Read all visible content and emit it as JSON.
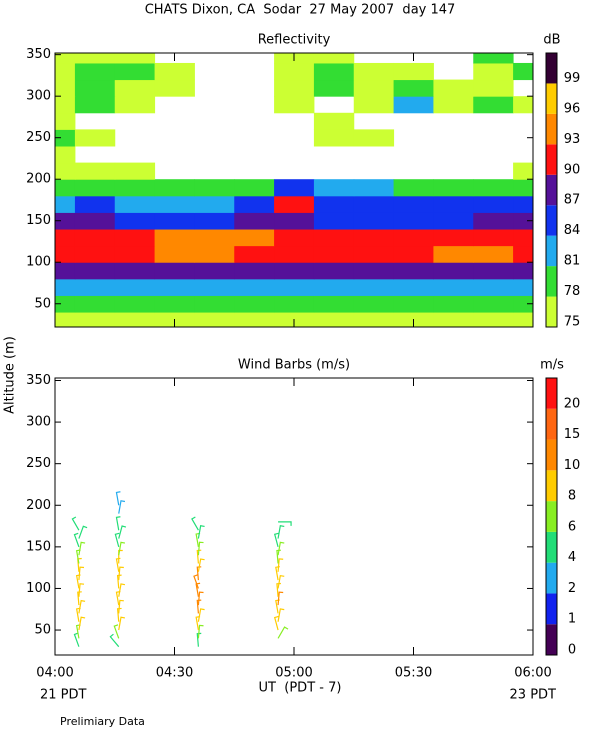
{
  "title": "CHATS Dixon, CA  Sodar  27 May 2007  day 147",
  "x_label": "UT  (PDT - 7)",
  "y_label": "Altitude (m)",
  "x_start_note": "21 PDT",
  "x_end_note": "23 PDT",
  "note": "Prelimiary Data",
  "chart_data": [
    {
      "type": "contour",
      "title": "Reflectivity",
      "colorbar_label": "dB",
      "levels": [
        75,
        78,
        81,
        84,
        87,
        90,
        93,
        96,
        99
      ],
      "level_colors": [
        "#ccff33",
        "#33dd33",
        "#22aaee",
        "#1133ee",
        "#551199",
        "#ff1111",
        "#ff8800",
        "#ffcc00",
        "#330033"
      ],
      "x": [
        240,
        250,
        260,
        270,
        280,
        290,
        300,
        310,
        320,
        330,
        340,
        350,
        360
      ],
      "heights": [
        30,
        50,
        70,
        90,
        110,
        130,
        150,
        170,
        190,
        210,
        230,
        250,
        270,
        290,
        310,
        330,
        350
      ],
      "z": [
        [
          76,
          76,
          76,
          76,
          76,
          76,
          76,
          77,
          76,
          76,
          76,
          76,
          76
        ],
        [
          79,
          79,
          79,
          79,
          79,
          79,
          79,
          79,
          79,
          79,
          79,
          79,
          79
        ],
        [
          83,
          83,
          82,
          82,
          83,
          83,
          83,
          83,
          82,
          83,
          83,
          83,
          83
        ],
        [
          88,
          88,
          87,
          88,
          88,
          88,
          88,
          88,
          88,
          88,
          88,
          88,
          88
        ],
        [
          91,
          91,
          92,
          94,
          94,
          92,
          91,
          91,
          91,
          92,
          94,
          94,
          91
        ],
        [
          91,
          91,
          92,
          94,
          94,
          94,
          91,
          91,
          91,
          91,
          92,
          92,
          91
        ],
        [
          87,
          87,
          86,
          86,
          86,
          88,
          88,
          86,
          85,
          86,
          86,
          88,
          88
        ],
        [
          83,
          85,
          83,
          83,
          83,
          84,
          91,
          84,
          85,
          84,
          84,
          84,
          84
        ],
        [
          79,
          80,
          79,
          79,
          79,
          79,
          84,
          81,
          82,
          79,
          79,
          79,
          79
        ],
        [
          76,
          77,
          76,
          null,
          null,
          null,
          null,
          null,
          null,
          null,
          null,
          null,
          76
        ],
        [
          76,
          null,
          null,
          null,
          null,
          null,
          null,
          null,
          null,
          null,
          null,
          null,
          null
        ],
        [
          80,
          76,
          null,
          null,
          null,
          null,
          null,
          76,
          76,
          null,
          null,
          null,
          null
        ],
        [
          76,
          null,
          null,
          null,
          null,
          null,
          null,
          76,
          null,
          null,
          null,
          null,
          null
        ],
        [
          76,
          78,
          76,
          null,
          null,
          null,
          76,
          null,
          76,
          81,
          76,
          79,
          76
        ],
        [
          76,
          78,
          76,
          76,
          null,
          null,
          76,
          78,
          76,
          78,
          76,
          76,
          null
        ],
        [
          76,
          78,
          78,
          76,
          null,
          null,
          76,
          78,
          76,
          76,
          null,
          76,
          78
        ],
        [
          76,
          76,
          76,
          null,
          null,
          null,
          76,
          76,
          null,
          null,
          null,
          78,
          null
        ]
      ],
      "xlim": [
        240,
        360
      ],
      "xticks": [
        240,
        270,
        300,
        330,
        360
      ],
      "ylim": [
        22,
        352
      ],
      "yticks": [
        50,
        100,
        150,
        200,
        250,
        300,
        350
      ]
    },
    {
      "type": "barbs",
      "title": "Wind Barbs (m/s)",
      "colorbar_label": "m/s",
      "levels": [
        0,
        1,
        2,
        4,
        6,
        8,
        10,
        15,
        20
      ],
      "level_colors": [
        "#440055",
        "#1122ee",
        "#22aaee",
        "#22dd77",
        "#88ee22",
        "#ffcc00",
        "#ff8800",
        "#ff6611",
        "#ff1111"
      ],
      "profiles": [
        {
          "time": 246,
          "heights": [
            30,
            40,
            50,
            60,
            70,
            80,
            90,
            100,
            110,
            120,
            130,
            140,
            150,
            160,
            170
          ],
          "speeds": [
            5,
            7,
            9,
            9,
            9,
            9,
            9,
            9,
            9,
            8,
            7,
            6,
            5,
            5,
            4
          ],
          "directions": [
            340,
            350,
            10,
            350,
            10,
            355,
            5,
            350,
            5,
            355,
            350,
            10,
            340,
            20,
            330
          ]
        },
        {
          "time": 256,
          "heights": [
            30,
            40,
            50,
            60,
            70,
            80,
            90,
            100,
            110,
            120,
            130,
            140,
            150,
            160,
            170,
            190,
            200
          ],
          "speeds": [
            5,
            6,
            9,
            9,
            9,
            9,
            9,
            9,
            9,
            8,
            8,
            7,
            5,
            5,
            5,
            3,
            3
          ],
          "directions": [
            320,
            340,
            10,
            355,
            5,
            350,
            10,
            355,
            5,
            350,
            0,
            10,
            345,
            15,
            350,
            10,
            350
          ]
        },
        {
          "time": 276,
          "heights": [
            30,
            40,
            50,
            60,
            70,
            80,
            90,
            100,
            110,
            120,
            130,
            140,
            150,
            160,
            170
          ],
          "speeds": [
            5,
            6,
            8,
            9,
            10,
            10,
            10,
            11,
            11,
            9,
            8,
            7,
            6,
            5,
            5
          ],
          "directions": [
            355,
            5,
            350,
            10,
            355,
            5,
            350,
            340,
            355,
            10,
            355,
            5,
            350,
            10,
            330
          ]
        },
        {
          "time": 296,
          "heights": [
            40,
            50,
            60,
            70,
            80,
            90,
            100,
            110,
            120,
            130,
            140,
            150,
            160,
            180
          ],
          "speeds": [
            6,
            9,
            9,
            9,
            10,
            9,
            9,
            8,
            8,
            7,
            6,
            5,
            5,
            4
          ],
          "directions": [
            30,
            345,
            10,
            350,
            5,
            355,
            10,
            350,
            5,
            355,
            10,
            345,
            10,
            90
          ]
        }
      ],
      "xlim": [
        240,
        360
      ],
      "xticks": [
        {
          "value": 240,
          "label": "04:00"
        },
        {
          "value": 270,
          "label": "04:30"
        },
        {
          "value": 300,
          "label": "05:00"
        },
        {
          "value": 330,
          "label": "05:30"
        },
        {
          "value": 360,
          "label": "06:00"
        }
      ],
      "ylim": [
        20,
        353
      ],
      "yticks": [
        50,
        100,
        150,
        200,
        250,
        300,
        350
      ]
    }
  ]
}
